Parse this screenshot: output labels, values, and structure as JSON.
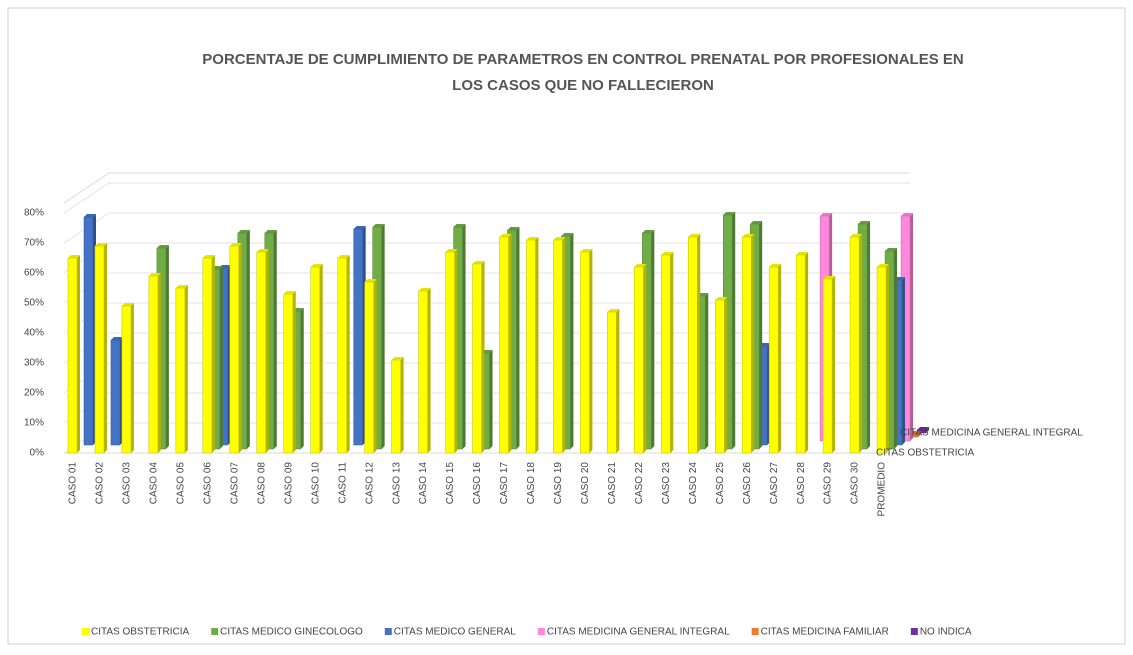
{
  "chart_data": {
    "type": "bar3d",
    "title": [
      "PORCENTAJE DE CUMPLIMIENTO DE PARAMETROS EN CONTROL PRENATAL POR PROFESIONALES  EN",
      "LOS CASOS QUE NO FALLECIERON"
    ],
    "categories": [
      "CASO 01",
      "CASO 02",
      "CASO 03",
      "CASO 04",
      "CASO 05",
      "CASO 06",
      "CASO 07",
      "CASO 08",
      "CASO 09",
      "CASO 10",
      "CASO 11",
      "CASO 12",
      "CASO 13",
      "CASO 14",
      "CASO 15",
      "CASO 16",
      "CASO 17",
      "CASO 18",
      "CASO 19",
      "CASO 20",
      "CASO 21",
      "CASO 22",
      "CASO 23",
      "CASO 24",
      "CASO 25",
      "CASO 26",
      "CASO 27",
      "CASO 28",
      "CASO 29",
      "CASO 30",
      "PROMEDIO"
    ],
    "series": [
      {
        "name": "CITAS OBSTETRICIA",
        "color": "#ffff00",
        "values": [
          65,
          69,
          49,
          59,
          55,
          65,
          69,
          67,
          53,
          62,
          65,
          57,
          31,
          54,
          67,
          63,
          72,
          71,
          71,
          67,
          47,
          62,
          66,
          72,
          51,
          72,
          62,
          66,
          58,
          72,
          62
        ]
      },
      {
        "name": "CITAS MEDICO GINECOLOGO",
        "color": "#70ad47",
        "values": [
          null,
          null,
          null,
          67,
          null,
          60,
          72,
          72,
          46,
          null,
          null,
          74,
          null,
          null,
          74,
          32,
          73,
          null,
          71,
          null,
          null,
          72,
          null,
          51,
          78,
          75,
          null,
          null,
          null,
          75,
          66
        ]
      },
      {
        "name": "CITAS MEDICO GENERAL",
        "color": "#4472c4",
        "values": [
          76,
          35,
          null,
          null,
          null,
          59,
          null,
          null,
          null,
          null,
          72,
          null,
          null,
          null,
          null,
          null,
          null,
          null,
          null,
          null,
          null,
          null,
          null,
          null,
          null,
          33,
          null,
          null,
          null,
          null,
          55
        ]
      },
      {
        "name": "CITAS MEDICINA GENERAL INTEGRAL",
        "color": "#ff88dd",
        "values": [
          null,
          null,
          null,
          null,
          null,
          null,
          null,
          null,
          null,
          null,
          null,
          null,
          null,
          null,
          null,
          null,
          null,
          null,
          null,
          null,
          null,
          null,
          null,
          null,
          null,
          null,
          null,
          75,
          null,
          null,
          75
        ]
      },
      {
        "name": "CITAS MEDICINA FAMILIAR",
        "color": "#ed7d31",
        "values": [
          null,
          null,
          null,
          null,
          null,
          null,
          null,
          null,
          null,
          null,
          null,
          null,
          null,
          null,
          null,
          null,
          null,
          null,
          null,
          null,
          null,
          null,
          null,
          null,
          null,
          null,
          null,
          null,
          null,
          null,
          1
        ]
      },
      {
        "name": "NO INDICA",
        "color": "#7030a0",
        "values": [
          null,
          null,
          null,
          null,
          null,
          null,
          null,
          null,
          null,
          null,
          null,
          null,
          null,
          null,
          null,
          null,
          null,
          null,
          null,
          null,
          null,
          null,
          null,
          null,
          null,
          null,
          null,
          null,
          null,
          null,
          1
        ]
      }
    ],
    "ylim": [
      0,
      80
    ],
    "yticks": [
      {
        "value": 0,
        "label": "0%"
      },
      {
        "value": 10,
        "label": "10%"
      },
      {
        "value": 20,
        "label": "20%"
      },
      {
        "value": 30,
        "label": "30%"
      },
      {
        "value": 40,
        "label": "40%"
      },
      {
        "value": 50,
        "label": "50%"
      },
      {
        "value": 60,
        "label": "60%"
      },
      {
        "value": 70,
        "label": "70%"
      },
      {
        "value": 80,
        "label": "80%"
      }
    ],
    "grid": true,
    "legend": "bottom"
  }
}
